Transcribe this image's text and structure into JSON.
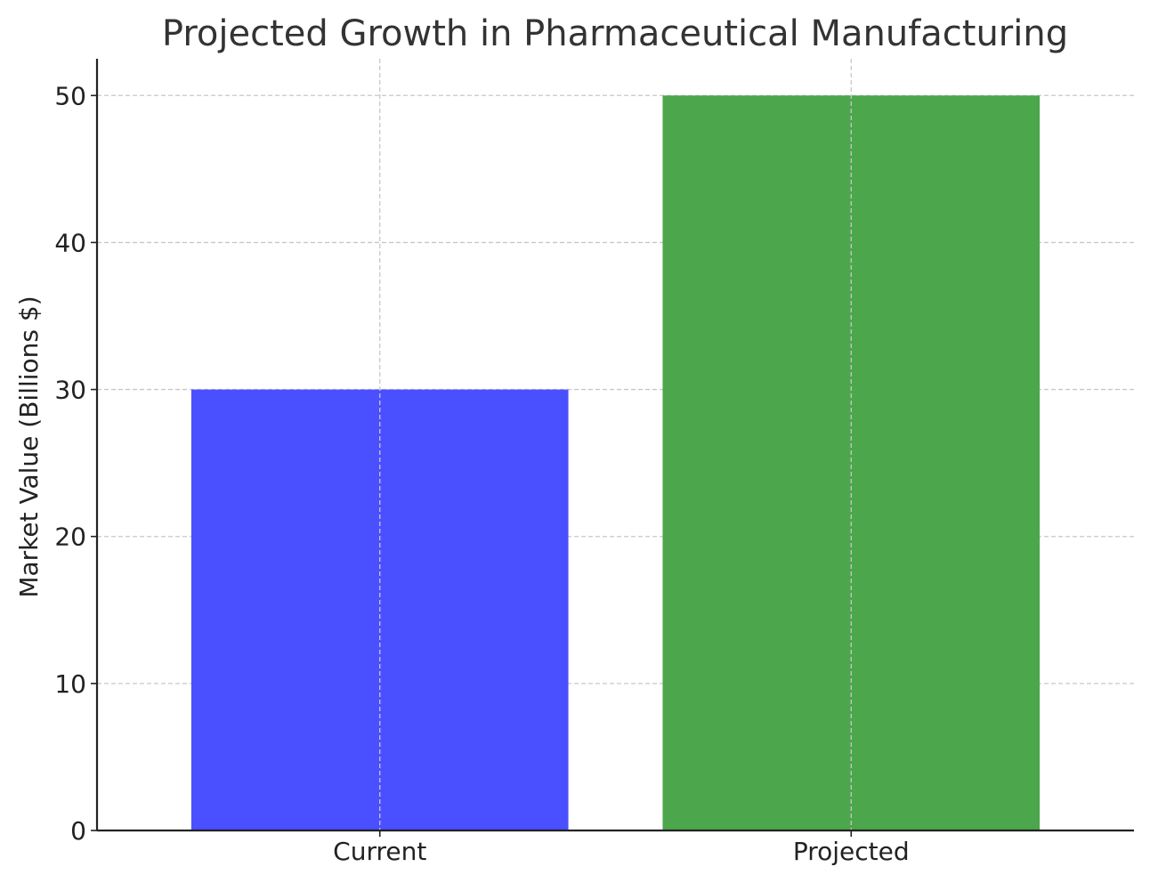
{
  "chart_data": {
    "type": "bar",
    "title": "Projected Growth in Pharmaceutical Manufacturing",
    "xlabel": "",
    "ylabel": "Market Value (Billions $)",
    "categories": [
      "Current",
      "Projected"
    ],
    "values": [
      30,
      50
    ],
    "colors": [
      "#4a4fff",
      "#4ca64c"
    ],
    "ylim": [
      0,
      52.5
    ],
    "yticks": [
      0,
      10,
      20,
      30,
      40,
      50
    ],
    "grid": true,
    "legend": "none"
  }
}
